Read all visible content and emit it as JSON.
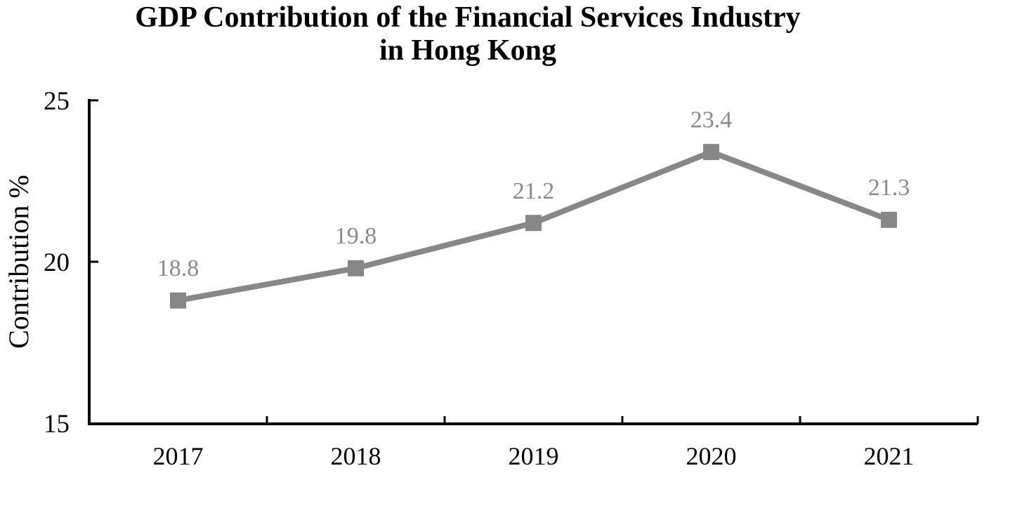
{
  "chart": {
    "title_lines": [
      "GDP Contribution of the Financial Services Industry",
      "in Hong Kong"
    ],
    "y_axis_label": "Contribution %"
  },
  "chart_data": {
    "type": "line",
    "title": "GDP Contribution of the Financial Services Industry in Hong Kong",
    "categories": [
      "2017",
      "2018",
      "2019",
      "2020",
      "2021"
    ],
    "values": [
      18.8,
      19.8,
      21.2,
      23.4,
      21.3
    ],
    "data_labels": [
      "18.8",
      "19.8",
      "21.2",
      "23.4",
      "21.3"
    ],
    "xlabel": "",
    "ylabel": "Contribution %",
    "ylim": [
      15,
      25
    ],
    "yticks": [
      25,
      20,
      15
    ],
    "ytick_labels": [
      "25",
      "20",
      "15"
    ],
    "grid": false,
    "legend": false,
    "marker_shape": "square",
    "colors": {
      "series": "#878787",
      "data_label": "#8a8a8a",
      "axis": "#000000",
      "background": "#ffffff"
    }
  }
}
